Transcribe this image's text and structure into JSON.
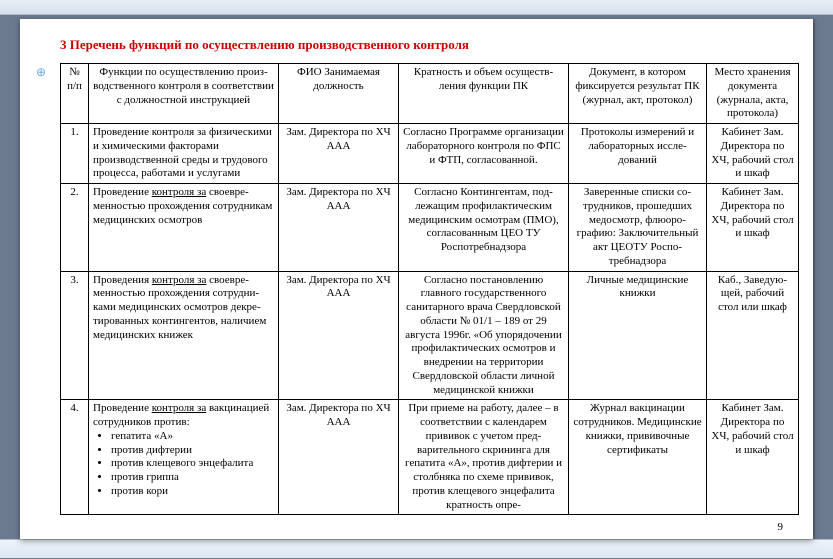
{
  "title": "3 Перечень функций по осуществлению производственного контроля",
  "pagenum": "9",
  "anchor_glyph": "⊕",
  "headers": {
    "c0": "№ п/п",
    "c1": "Функции по осуществлению произ­водственного контроля в соответ­ствии с должностной инструкцией",
    "c2": "ФИО Занимаемая долж­ность",
    "c3": "Кратность и объем осуществ­ления функции ПК",
    "c4": "Документ, в котором фиксируется результат ПК (журнал, акт, про­токол)",
    "c5": "Место хранения документа (журнала, акта, протокола)"
  },
  "rows": [
    {
      "n": "1.",
      "func_plain": "Проведение контроля за физиче­скими и химическими факторами производственной среды и трудово­го процесса, работами и услугами",
      "fio": "Зам. Директора по ХЧ ААА",
      "freq": "Согласно Программе органи­зации лабораторного кон­троля по ФПС и ФТП, согла­сованной.",
      "doc": "Протоколы измерений и лабораторных иссле­дований",
      "place": "Кабинет Зам. Директора по ХЧ, рабочий стол и шкаф"
    },
    {
      "n": "2.",
      "func_pre": "Проведение ",
      "func_u": "контроля за",
      "func_post": " своевре­менностью прохождения сотрудни­кам медицинских осмотров",
      "fio": "Зам. Директора по ХЧ ААА",
      "freq": "Согласно Контингентам, под­лежащим профилактическим медицинским осмотрам (ПМО), согласованным ЦЕО ТУ Роспотребнадзора",
      "doc": "Заверенные списки со­трудников, прошедших медосмотр, флюоро­графию: Заключитель­ный акт ЦЕОТУ Роспо­требнадзора",
      "place": "Кабинет Зам. Директора по ХЧ, рабочий стол и шкаф"
    },
    {
      "n": "3.",
      "func_pre": "Проведения ",
      "func_u": "контроля за",
      "func_post": " своевре­менностью прохождения сотрудни­ками медицинских осмотров декре­тированных контингентов, наличи­ем медицинских книжек",
      "fio": "Зам. Директора по ХЧ ААА",
      "freq": "Согласно постановлению главного государственного санитарного врача Свердлов­ской области № 01/1 – 189 от 29 августа 1996г. «Об упоря­дочении профилактических осмотров и внедрении на тер­ритории Свердловской обла­сти личной медицинской книжки",
      "doc": "Личные медицинские книжки",
      "place": "Каб., Заведую­щей, рабочий стол или шкаф"
    },
    {
      "n": "4.",
      "func_pre": "Проведение ",
      "func_u": "контроля за",
      "func_post": " вакцинаци­ей сотрудников против:",
      "bullets": [
        "гепатита «А»",
        "против дифтерии",
        "против клещевого энцефа­лита",
        "против гриппа",
        "против кори"
      ],
      "fio": "Зам. Директора по ХЧ ААА",
      "freq": "При приеме на работу, далее – в соответствии с календа­рем прививок с учетом пред­варительного скрининга для гепатита «А», против дифте­рии и столбняка по схеме прививок,  против клещевого энцефалита кратность опре-",
      "doc": "Журнал вакцинации сотрудников. Медицин­ские  книжки, приви­вочные сертификаты",
      "place": "Кабинет Зам. Директора по ХЧ, рабочий стол и шкаф"
    }
  ]
}
